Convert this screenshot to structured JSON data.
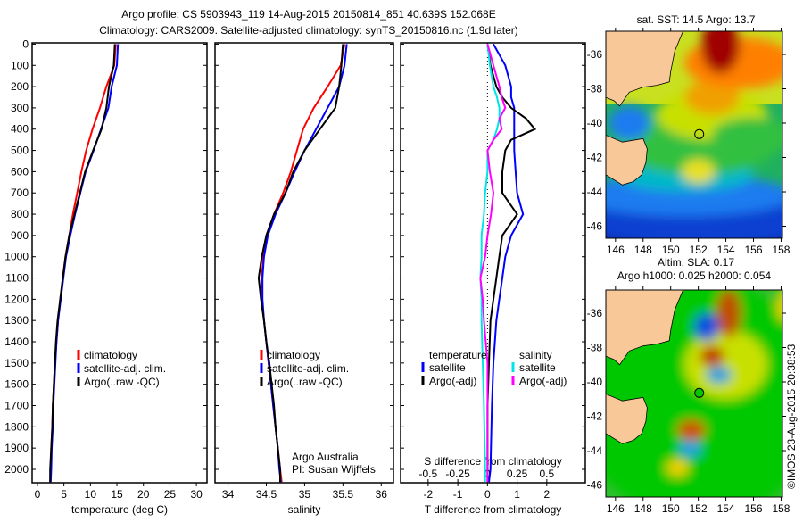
{
  "title": {
    "line1": "Argo profile: CS 5903943_119 14-Aug-2015 20150814_851 40.639S 152.068E",
    "line2": "Climatology: CARS2009. Satellite-adjusted climatology: synTS_20150816.nc (1.9d later)"
  },
  "credit": "©IMOS 23-Aug-2015 20:38:53",
  "colors": {
    "climatology": "#ff0000",
    "satellite": "#0000ff",
    "argo": "#000000",
    "s_satellite": "#00e5e5",
    "s_argo": "#ff00ff",
    "land": "#f9c898"
  },
  "chart_data": [
    {
      "id": "temperature",
      "type": "line",
      "xlabel": "temperature (deg C)",
      "xlim": [
        -1,
        32
      ],
      "ylim": [
        2063,
        -6
      ],
      "xticks": [
        0,
        5,
        10,
        15,
        20,
        25,
        30
      ],
      "yticks": [
        0,
        100,
        200,
        300,
        400,
        500,
        600,
        700,
        800,
        900,
        1000,
        1100,
        1200,
        1300,
        1400,
        1500,
        1600,
        1700,
        1800,
        1900,
        2000
      ],
      "legend": [
        "climatology",
        "satellite-adj. clim.",
        "Argo(..raw -QC)"
      ],
      "depth": [
        0,
        100,
        200,
        300,
        400,
        500,
        600,
        700,
        800,
        900,
        1000,
        1100,
        1200,
        1300,
        1400,
        1500,
        1600,
        1700,
        1800,
        1900,
        2000,
        2060
      ],
      "series": [
        {
          "name": "climatology",
          "color": "#ff0000",
          "values": [
            14.8,
            14.5,
            13.0,
            11.8,
            10.4,
            9.2,
            8.3,
            7.5,
            6.7,
            6.0,
            5.3,
            4.8,
            4.3,
            3.9,
            3.6,
            3.3,
            3.1,
            2.9,
            2.8,
            2.6,
            2.5,
            2.4
          ]
        },
        {
          "name": "satellite-adj. clim.",
          "color": "#0000ff",
          "values": [
            15.2,
            15.0,
            14.0,
            13.4,
            12.0,
            10.6,
            9.1,
            8.1,
            7.1,
            6.2,
            5.4,
            4.9,
            4.4,
            3.9,
            3.6,
            3.4,
            3.2,
            3.0,
            2.9,
            2.7,
            2.6,
            2.5
          ]
        },
        {
          "name": "Argo(..raw -QC)",
          "color": "#000000",
          "values": [
            14.6,
            14.4,
            13.5,
            13.0,
            12.1,
            10.5,
            9.0,
            8.0,
            7.0,
            6.0,
            5.3,
            4.8,
            4.3,
            3.8,
            3.5,
            3.3,
            3.1,
            2.9,
            2.8,
            2.6,
            2.4,
            2.4
          ]
        }
      ]
    },
    {
      "id": "salinity",
      "type": "line",
      "xlabel": "salinity",
      "xlim": [
        33.83,
        36.16
      ],
      "ylim": [
        2063,
        -6
      ],
      "xticks": [
        34,
        34.5,
        35,
        35.5,
        36
      ],
      "legend": [
        "climatology",
        "satellite-adj. clim.",
        "Argo(..raw -QC)"
      ],
      "annotation": [
        "Argo Australia",
        "PI: Susan Wijffels"
      ],
      "depth": [
        0,
        100,
        200,
        300,
        400,
        500,
        600,
        700,
        800,
        900,
        1000,
        1100,
        1200,
        1300,
        1400,
        1500,
        1600,
        1700,
        1800,
        1900,
        2000,
        2060
      ],
      "series": [
        {
          "name": "climatology",
          "color": "#ff0000",
          "values": [
            35.52,
            35.47,
            35.3,
            35.12,
            34.98,
            34.9,
            34.82,
            34.72,
            34.6,
            34.5,
            34.46,
            34.44,
            34.44,
            34.47,
            34.5,
            34.53,
            34.56,
            34.59,
            34.62,
            34.65,
            34.68,
            34.7
          ]
        },
        {
          "name": "satellite-adj. clim.",
          "color": "#0000ff",
          "values": [
            35.55,
            35.52,
            35.45,
            35.3,
            35.15,
            35.0,
            34.87,
            34.75,
            34.62,
            34.52,
            34.47,
            34.45,
            34.45,
            34.47,
            34.5,
            34.53,
            34.56,
            34.59,
            34.62,
            34.65,
            34.67,
            34.69
          ]
        },
        {
          "name": "Argo(..raw -QC)",
          "color": "#000000",
          "values": [
            35.5,
            35.48,
            35.45,
            35.4,
            35.2,
            35.0,
            34.85,
            34.75,
            34.6,
            34.5,
            34.44,
            34.4,
            34.43,
            34.47,
            34.5,
            34.54,
            34.57,
            34.6,
            34.62,
            34.65,
            34.68,
            34.68
          ]
        }
      ]
    },
    {
      "id": "difference",
      "type": "line",
      "xlabel": "T difference from climatology",
      "x2label": "S difference from climatology",
      "xlim": [
        -2.93,
        3.3
      ],
      "ylim": [
        2063,
        -6
      ],
      "xticks": [
        -2,
        -1,
        0,
        1,
        2
      ],
      "x2ticks": [
        "-0.5",
        "-0.25",
        "0",
        "0.25",
        "0.5"
      ],
      "x2values": [
        -0.5,
        -0.25,
        0,
        0.25,
        0.5
      ],
      "legend_temperature": {
        "title": "temperature",
        "items": [
          "satellite",
          "Argo(-adj)"
        ]
      },
      "legend_salinity": {
        "title": "salinity",
        "items": [
          "satellite",
          "Argo(-adj)"
        ]
      },
      "depth": [
        0,
        100,
        200,
        250,
        300,
        350,
        400,
        450,
        500,
        600,
        700,
        800,
        900,
        1000,
        1100,
        1200,
        1300,
        1500,
        1700,
        2000,
        2060
      ],
      "series": [
        {
          "name": "T satellite",
          "unit": "T",
          "color": "#0000ff",
          "values": [
            0.2,
            0.6,
            0.8,
            0.8,
            0.9,
            0.9,
            0.9,
            0.9,
            0.9,
            0.95,
            1.0,
            1.2,
            0.8,
            0.6,
            0.5,
            0.4,
            0.3,
            0.2,
            0.15,
            0.1,
            0.05
          ]
        },
        {
          "name": "T Argo(-adj)",
          "unit": "T",
          "color": "#000000",
          "values": [
            0.0,
            0.1,
            0.3,
            0.5,
            0.8,
            1.3,
            1.6,
            0.8,
            0.6,
            0.5,
            0.5,
            1.0,
            0.5,
            0.4,
            0.3,
            0.2,
            0.1,
            0.05,
            0.0,
            0.0,
            0.0
          ]
        },
        {
          "name": "S satellite",
          "unit": "S",
          "color": "#00e5e5",
          "values": [
            0.0,
            0.02,
            0.05,
            0.08,
            0.1,
            0.1,
            0.08,
            0.05,
            0.0,
            0.0,
            -0.02,
            -0.03,
            -0.05,
            -0.05,
            -0.06,
            -0.05,
            -0.05,
            -0.04,
            -0.03,
            -0.02,
            -0.02
          ]
        },
        {
          "name": "S Argo(-adj)",
          "unit": "S",
          "color": "#ff00ff",
          "values": [
            0.0,
            0.05,
            0.1,
            0.12,
            0.15,
            0.1,
            0.12,
            0.05,
            0.0,
            0.02,
            0.05,
            0.03,
            0.0,
            -0.02,
            -0.06,
            -0.04,
            -0.03,
            0.0,
            0.0,
            0.0,
            0.0
          ]
        }
      ]
    }
  ],
  "maps": [
    {
      "id": "sst",
      "title1": "sat. SST: 14.5 Argo: 13.7",
      "title2": "",
      "lonticks": [
        "146",
        "148",
        "150",
        "152",
        "154",
        "156",
        "158"
      ],
      "latticks": [
        "-36",
        "-38",
        "-40",
        "-42",
        "-44",
        "-46"
      ]
    },
    {
      "id": "sla",
      "title1": "Altim. SLA: 0.17",
      "title2": "Argo h1000: 0.025 h2000: 0.054",
      "lonticks": [
        "146",
        "148",
        "150",
        "152",
        "154",
        "156",
        "158"
      ],
      "latticks": [
        "-36",
        "-38",
        "-40",
        "-42",
        "-44",
        "-46"
      ]
    }
  ],
  "argo_position": {
    "lon": 152.068,
    "lat": -40.639
  }
}
